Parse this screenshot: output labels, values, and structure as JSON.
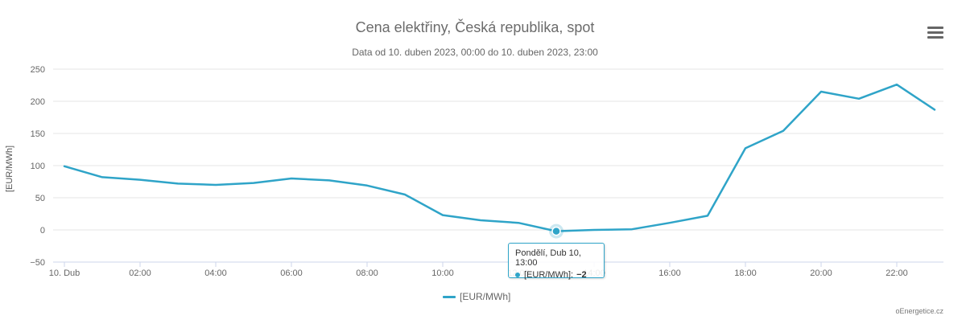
{
  "header": {
    "title": "Cena elektřiny, Česká republika, spot",
    "subtitle": "Data od 10. duben 2023, 00:00 do 10. duben 2023, 23:00"
  },
  "menu": {
    "icon": "hamburger-menu-icon"
  },
  "tooltip": {
    "date": "Pondělí, Dub 10, 13:00",
    "series": "[EUR/MWh]:",
    "value": "−2"
  },
  "credits": "oEnergetice.cz",
  "chart_data": {
    "type": "line",
    "x": [
      "00:00",
      "01:00",
      "02:00",
      "03:00",
      "04:00",
      "05:00",
      "06:00",
      "07:00",
      "08:00",
      "09:00",
      "10:00",
      "11:00",
      "12:00",
      "13:00",
      "14:00",
      "15:00",
      "16:00",
      "17:00",
      "18:00",
      "19:00",
      "20:00",
      "21:00",
      "22:00",
      "23:00"
    ],
    "xticks": [
      "10. Dub",
      "02:00",
      "04:00",
      "06:00",
      "08:00",
      "10:00",
      "12:00",
      "14:00",
      "16:00",
      "18:00",
      "20:00",
      "22:00"
    ],
    "series": [
      {
        "name": "[EUR/MWh]",
        "color": "#2fa4c8",
        "values": [
          99,
          82,
          78,
          72,
          70,
          73,
          80,
          77,
          69,
          55,
          23,
          15,
          11,
          -2,
          0,
          1,
          11,
          22,
          127,
          154,
          215,
          204,
          226,
          187
        ]
      }
    ],
    "ylabel": "[EUR/MWh]",
    "ylim": [
      -50,
      250
    ],
    "yticks": [
      -50,
      0,
      50,
      100,
      150,
      200,
      250
    ],
    "grid": true,
    "legend": "bottom-center",
    "highlight_index": 13
  }
}
